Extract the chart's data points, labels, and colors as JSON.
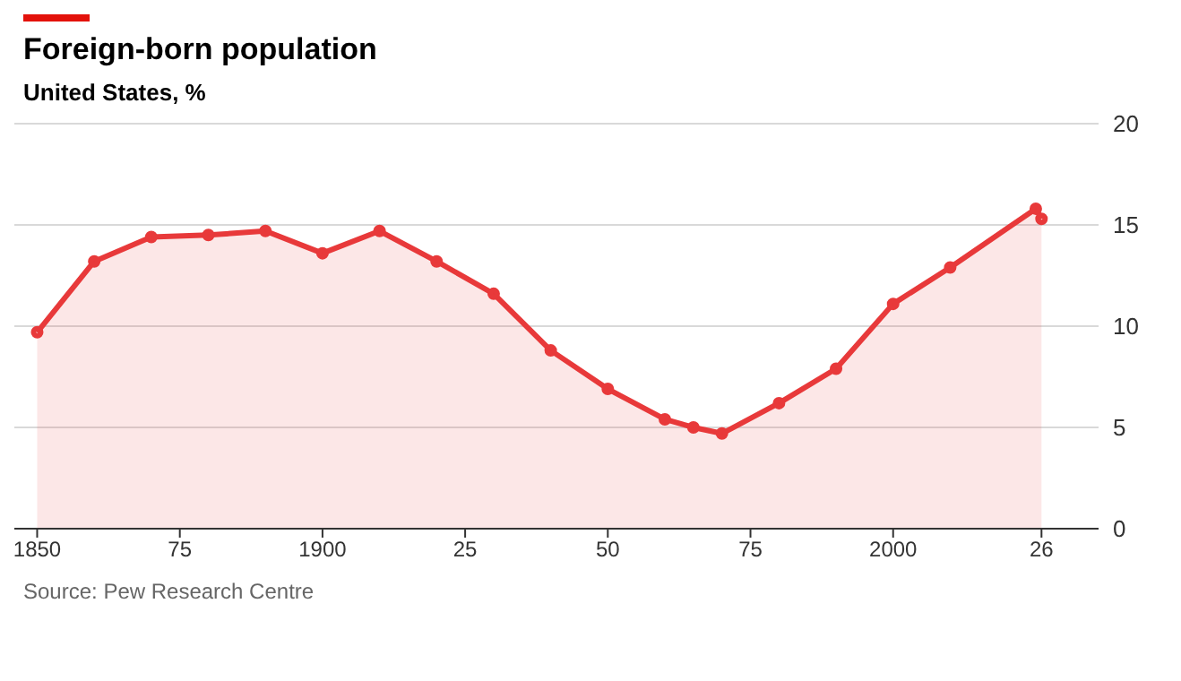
{
  "chart_data": {
    "type": "area",
    "title": "Foreign-born population",
    "subtitle": "United States, %",
    "x": [
      1850,
      1860,
      1870,
      1880,
      1890,
      1900,
      1910,
      1920,
      1930,
      1940,
      1950,
      1960,
      1965,
      1970,
      1980,
      1990,
      2000,
      2010,
      2025,
      2026
    ],
    "series": [
      {
        "color": "#e8393a",
        "values": [
          9.7,
          13.2,
          14.4,
          14.5,
          14.7,
          13.6,
          14.7,
          13.2,
          11.6,
          8.8,
          6.9,
          5.4,
          5.0,
          4.7,
          6.2,
          7.9,
          11.1,
          12.9,
          15.8,
          15.3
        ]
      }
    ],
    "xlim": [
      1846,
      2036
    ],
    "xticks": [
      1850,
      {
        "value": 1875,
        "label": "75"
      },
      1900,
      {
        "value": 1925,
        "label": "25"
      },
      {
        "value": 1950,
        "label": "50"
      },
      {
        "value": 1975,
        "label": "75"
      },
      2000,
      {
        "value": 2026,
        "label": "26"
      }
    ],
    "ylim": [
      0,
      20
    ],
    "yticks": [
      0,
      5,
      10,
      15,
      20
    ],
    "grid": "y",
    "legend": false,
    "marker": "circle",
    "line_style": "solid",
    "annotations": [
      "Source: Pew Research Centre"
    ]
  }
}
